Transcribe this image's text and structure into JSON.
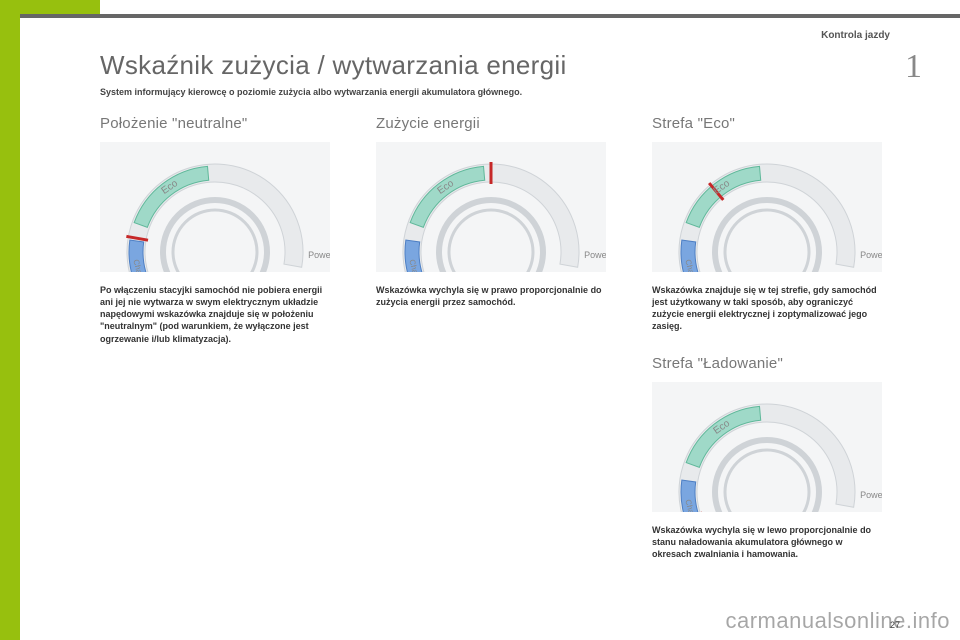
{
  "header": {
    "category": "Kontrola jazdy",
    "section_number": "1",
    "page_number": "27"
  },
  "title": "Wskaźnik zużycia / wytwarzania energii",
  "subtitle": "System informujący kierowcę o poziomie zużycia albo wytwarzania energii akumulatora głównego.",
  "gauge_style": {
    "outer_bg": "#f4f5f6",
    "ring_light": "#e8eaec",
    "ring_dark": "#cfd3d7",
    "eco_fill": "#9fd9c8",
    "eco_stroke": "#5fb89a",
    "charge_fill": "#7aa6e0",
    "charge_stroke": "#4d7fc4",
    "needle": "#c62828",
    "label_color": "#888",
    "eco_text": "Eco",
    "charge_text": "Charge",
    "power_text": "Power"
  },
  "blocks": {
    "neutral": {
      "heading": "Położenie \"neutralne\"",
      "needle_angle": -170,
      "desc": "Po włączeniu stacyjki samochód nie pobiera energii ani jej nie wytwarza w swym elektrycznym układzie napędowymi wskazówka znajduje się w położeniu \"neutralnym\" (pod warunkiem, że wyłączone jest ogrzewanie i/lub klimatyzacja)."
    },
    "consumption": {
      "heading": "Zużycie energii",
      "needle_angle": -90,
      "desc": "Wskazówka wychyla się w prawo proporcjonalnie do zużycia energii przez samochód."
    },
    "eco": {
      "heading": "Strefa \"Eco\"",
      "needle_angle": -130,
      "desc": "Wskazówka znajduje się w tej strefie, gdy samochód jest użytkowany w taki sposób, aby ograniczyć zużycie energii elektrycznej i zoptymalizować jego zasięg."
    },
    "charging": {
      "heading": "Strefa \"Ładowanie\"",
      "needle_angle": -198,
      "desc": "Wskazówka wychyla się w lewo proporcjonalnie do stanu naładowania akumulatora głównego w okresach zwalniania i hamowania."
    }
  },
  "watermark": "carmanualsonline.info"
}
